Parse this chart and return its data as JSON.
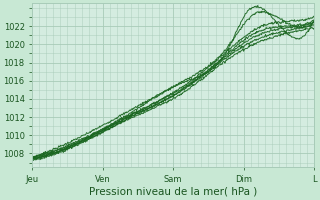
{
  "title": "",
  "xlabel": "Pression niveau de la mer( hPa )",
  "ylabel": "",
  "background_color": "#c8e8d4",
  "plot_bg_color": "#d4ece0",
  "grid_color": "#a8cbb8",
  "line_color": "#1a6620",
  "ylim": [
    1006.5,
    1024.5
  ],
  "xlim": [
    0,
    100
  ],
  "yticks": [
    1008,
    1010,
    1012,
    1014,
    1016,
    1018,
    1020,
    1022
  ],
  "day_labels": [
    "Jeu",
    "Ven",
    "Sam",
    "Dim",
    "L"
  ],
  "day_positions": [
    0,
    25,
    50,
    75,
    100
  ],
  "num_lines": 7,
  "font_size_ticks": 6,
  "font_size_xlabel": 7.5,
  "tick_color": "#1a5520",
  "xlabel_color": "#1a5520",
  "figsize": [
    3.2,
    2.0
  ],
  "dpi": 100
}
